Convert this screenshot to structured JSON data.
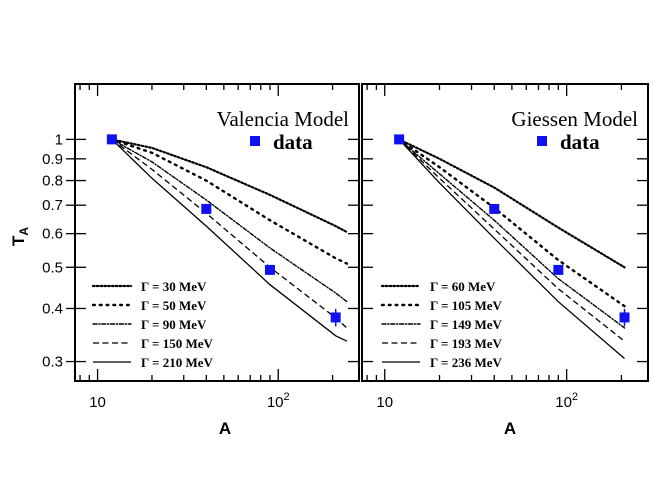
{
  "chart_data": [
    {
      "type": "line",
      "title": "Valencia Model",
      "xlabel": "A",
      "ylabel": "T",
      "ylabel_sub": "A",
      "x_scale": "log",
      "y_scale": "log",
      "xlim": [
        7.5,
        280
      ],
      "ylim": [
        0.27,
        1.35
      ],
      "x_ticks": [
        {
          "value": 10,
          "label": "10",
          "sup": ""
        },
        {
          "value": 100,
          "label": "10",
          "sup": "2"
        }
      ],
      "y_ticks": [
        {
          "value": 1,
          "label": "1"
        },
        {
          "value": 0.9,
          "label": "0.9"
        },
        {
          "value": 0.8,
          "label": "0.8"
        },
        {
          "value": 0.7,
          "label": "0.7"
        },
        {
          "value": 0.6,
          "label": "0.6"
        },
        {
          "value": 0.5,
          "label": "0.5"
        },
        {
          "value": 0.4,
          "label": "0.4"
        },
        {
          "value": 0.3,
          "label": "0.3"
        }
      ],
      "data_legend": "data",
      "data_points": [
        {
          "x": 12,
          "y": 1.0,
          "err": 0.0
        },
        {
          "x": 40,
          "y": 0.686,
          "err": 0.0
        },
        {
          "x": 90,
          "y": 0.493,
          "err": 0.012
        },
        {
          "x": 208,
          "y": 0.381,
          "err": 0.018
        }
      ],
      "series": [
        {
          "name": "Γ = 30 MeV",
          "dash": "dense-dot",
          "x": [
            12,
            20,
            40,
            90,
            208,
            240
          ],
          "y": [
            1.0,
            0.955,
            0.86,
            0.74,
            0.625,
            0.605
          ]
        },
        {
          "name": "Γ = 50 MeV",
          "dash": "dot",
          "x": [
            12,
            20,
            40,
            90,
            208,
            240
          ],
          "y": [
            1.0,
            0.93,
            0.8,
            0.645,
            0.525,
            0.51
          ]
        },
        {
          "name": "Γ = 90 MeV",
          "dash": "dash-dot",
          "x": [
            12,
            20,
            40,
            90,
            208,
            240
          ],
          "y": [
            1.0,
            0.885,
            0.72,
            0.555,
            0.435,
            0.415
          ]
        },
        {
          "name": "Γ = 150 MeV",
          "dash": "dash",
          "x": [
            12,
            20,
            40,
            90,
            208,
            240
          ],
          "y": [
            1.0,
            0.85,
            0.67,
            0.5,
            0.38,
            0.36
          ]
        },
        {
          "name": "Γ = 210 MeV",
          "dash": "solid",
          "x": [
            12,
            20,
            40,
            90,
            208,
            240
          ],
          "y": [
            1.0,
            0.81,
            0.625,
            0.455,
            0.345,
            0.335
          ]
        }
      ]
    },
    {
      "type": "line",
      "title": "Giessen Model",
      "xlabel": "A",
      "ylabel": "",
      "ylabel_sub": "",
      "x_scale": "log",
      "y_scale": "log",
      "xlim": [
        7.5,
        280
      ],
      "ylim": [
        0.27,
        1.35
      ],
      "x_ticks": [
        {
          "value": 10,
          "label": "10",
          "sup": ""
        },
        {
          "value": 100,
          "label": "10",
          "sup": "2"
        }
      ],
      "y_ticks": [],
      "data_legend": "data",
      "data_points": [
        {
          "x": 12,
          "y": 1.0,
          "err": 0.0
        },
        {
          "x": 40,
          "y": 0.686,
          "err": 0.0
        },
        {
          "x": 90,
          "y": 0.493,
          "err": 0.012
        },
        {
          "x": 208,
          "y": 0.381,
          "err": 0.018
        }
      ],
      "series": [
        {
          "name": "Γ = 60  MeV",
          "dash": "dense-dot",
          "x": [
            12,
            20,
            40,
            90,
            208
          ],
          "y": [
            1.0,
            0.9,
            0.77,
            0.62,
            0.5
          ]
        },
        {
          "name": "Γ = 105 MeV",
          "dash": "dot",
          "x": [
            12,
            20,
            40,
            90,
            208
          ],
          "y": [
            1.0,
            0.86,
            0.69,
            0.52,
            0.405
          ]
        },
        {
          "name": "Γ = 149 MeV",
          "dash": "dash-dot",
          "x": [
            12,
            20,
            40,
            90,
            208
          ],
          "y": [
            1.0,
            0.83,
            0.645,
            0.47,
            0.36
          ]
        },
        {
          "name": "Γ = 193 MeV",
          "dash": "dash",
          "x": [
            12,
            20,
            40,
            90,
            208
          ],
          "y": [
            1.0,
            0.81,
            0.615,
            0.445,
            0.335
          ]
        },
        {
          "name": "Γ = 236 MeV",
          "dash": "solid",
          "x": [
            12,
            20,
            40,
            90,
            208
          ],
          "y": [
            1.0,
            0.79,
            0.585,
            0.415,
            0.305
          ]
        }
      ]
    }
  ],
  "colors": {
    "data_marker": "#1010f0",
    "line": "#000000",
    "axis": "#000000"
  }
}
